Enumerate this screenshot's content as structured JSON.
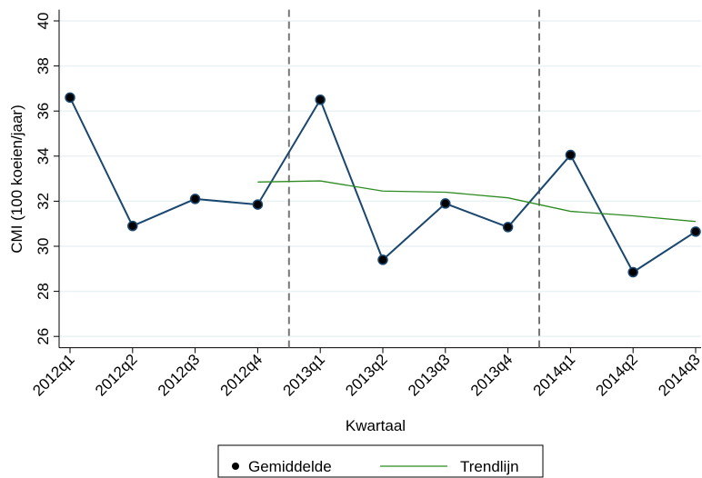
{
  "chart_data": {
    "type": "line",
    "xlabel": "Kwartaal",
    "ylabel": "CMI (100 koeien/jaar)",
    "categories": [
      "2012q1",
      "2012q2",
      "2012q3",
      "2012q4",
      "2013q1",
      "2013q2",
      "2013q3",
      "2013q4",
      "2014q1",
      "2014q2",
      "2014q3"
    ],
    "series": [
      {
        "name": "Gemiddelde",
        "color": "#1a476f",
        "marker_color": "#000000",
        "markers": true,
        "values": [
          36.6,
          30.9,
          32.1,
          31.85,
          36.5,
          29.4,
          31.9,
          30.85,
          34.05,
          28.85,
          30.65
        ]
      },
      {
        "name": "Trendlijn",
        "color": "#2e8b22",
        "markers": false,
        "values": [
          null,
          null,
          null,
          32.85,
          32.9,
          32.45,
          32.4,
          32.15,
          31.55,
          31.35,
          31.1
        ]
      }
    ],
    "reference_lines_x": [
      3.5,
      7.5
    ],
    "ylim": [
      25.5,
      40.5
    ],
    "yticks": [
      26,
      28,
      30,
      32,
      34,
      36,
      38,
      40
    ],
    "grid": true,
    "legend": "bottom"
  }
}
